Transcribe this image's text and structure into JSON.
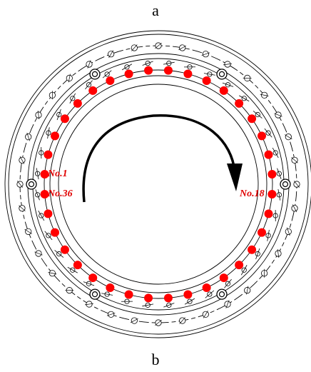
{
  "captions": {
    "top": "a",
    "bottom": "b"
  },
  "labels": {
    "first": "No.1",
    "last": "No.36",
    "middle": "No.18"
  },
  "points_count": 36,
  "colors": {
    "point": "#ff0000",
    "label": "#e00000",
    "line": "#000000"
  }
}
